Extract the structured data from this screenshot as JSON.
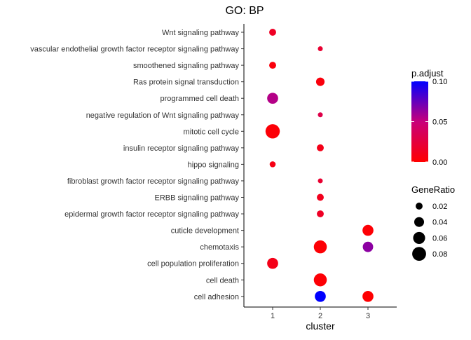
{
  "chart_data": {
    "type": "scatter",
    "title": "GO: BP",
    "xlabel": "cluster",
    "ylabel": "",
    "x_categories": [
      "1",
      "2",
      "3"
    ],
    "y_categories": [
      "Wnt signaling pathway",
      "vascular endothelial growth factor receptor signaling pathway",
      "smoothened signaling pathway",
      "Ras protein signal transduction",
      "programmed cell death",
      "negative regulation of Wnt signaling pathway",
      "mitotic cell cycle",
      "insulin receptor signaling pathway",
      "hippo signaling",
      "fibroblast growth factor receptor signaling pathway",
      "ERBB signaling pathway",
      "epidermal growth factor receptor signaling pathway",
      "cuticle development",
      "chemotaxis",
      "cell population proliferation",
      "cell death",
      "cell adhesion"
    ],
    "points": [
      {
        "cluster": "1",
        "term": "Wnt signaling pathway",
        "gene_ratio": 0.02,
        "p_adjust": 0.015
      },
      {
        "cluster": "2",
        "term": "vascular endothelial growth factor receptor signaling pathway",
        "gene_ratio": 0.01,
        "p_adjust": 0.02
      },
      {
        "cluster": "1",
        "term": "smoothened signaling pathway",
        "gene_ratio": 0.02,
        "p_adjust": 0.005
      },
      {
        "cluster": "2",
        "term": "Ras protein signal transduction",
        "gene_ratio": 0.03,
        "p_adjust": 0.005
      },
      {
        "cluster": "1",
        "term": "programmed cell death",
        "gene_ratio": 0.05,
        "p_adjust": 0.055
      },
      {
        "cluster": "2",
        "term": "negative regulation of Wnt signaling pathway",
        "gene_ratio": 0.01,
        "p_adjust": 0.03
      },
      {
        "cluster": "1",
        "term": "mitotic cell cycle",
        "gene_ratio": 0.085,
        "p_adjust": 0.003
      },
      {
        "cluster": "2",
        "term": "insulin receptor signaling pathway",
        "gene_ratio": 0.02,
        "p_adjust": 0.01
      },
      {
        "cluster": "1",
        "term": "hippo signaling",
        "gene_ratio": 0.015,
        "p_adjust": 0.008
      },
      {
        "cluster": "2",
        "term": "fibroblast growth factor receptor signaling pathway",
        "gene_ratio": 0.01,
        "p_adjust": 0.02
      },
      {
        "cluster": "2",
        "term": "ERBB signaling pathway",
        "gene_ratio": 0.02,
        "p_adjust": 0.012
      },
      {
        "cluster": "2",
        "term": "epidermal growth factor receptor signaling pathway",
        "gene_ratio": 0.02,
        "p_adjust": 0.015
      },
      {
        "cluster": "3",
        "term": "cuticle development",
        "gene_ratio": 0.05,
        "p_adjust": 0.002
      },
      {
        "cluster": "2",
        "term": "chemotaxis",
        "gene_ratio": 0.07,
        "p_adjust": 0.002
      },
      {
        "cluster": "3",
        "term": "chemotaxis",
        "gene_ratio": 0.045,
        "p_adjust": 0.065
      },
      {
        "cluster": "1",
        "term": "cell population proliferation",
        "gene_ratio": 0.05,
        "p_adjust": 0.01
      },
      {
        "cluster": "2",
        "term": "cell death",
        "gene_ratio": 0.07,
        "p_adjust": 0.002
      },
      {
        "cluster": "2",
        "term": "cell adhesion",
        "gene_ratio": 0.05,
        "p_adjust": 0.1
      },
      {
        "cluster": "3",
        "term": "cell adhesion",
        "gene_ratio": 0.05,
        "p_adjust": 0.001
      }
    ],
    "color_legend": {
      "title": "p.adjust",
      "ticks": [
        "0.10",
        "0.05",
        "0.00"
      ],
      "tick_values": [
        0.1,
        0.05,
        0.0
      ],
      "range": [
        0.0,
        0.1
      ],
      "low_color": "#ff0000",
      "high_color": "#0000ff"
    },
    "size_legend": {
      "title": "GeneRatio",
      "labels": [
        "0.02",
        "0.04",
        "0.06",
        "0.08"
      ],
      "values": [
        0.02,
        0.04,
        0.06,
        0.08
      ]
    },
    "grid": false,
    "legend_position": "right"
  }
}
